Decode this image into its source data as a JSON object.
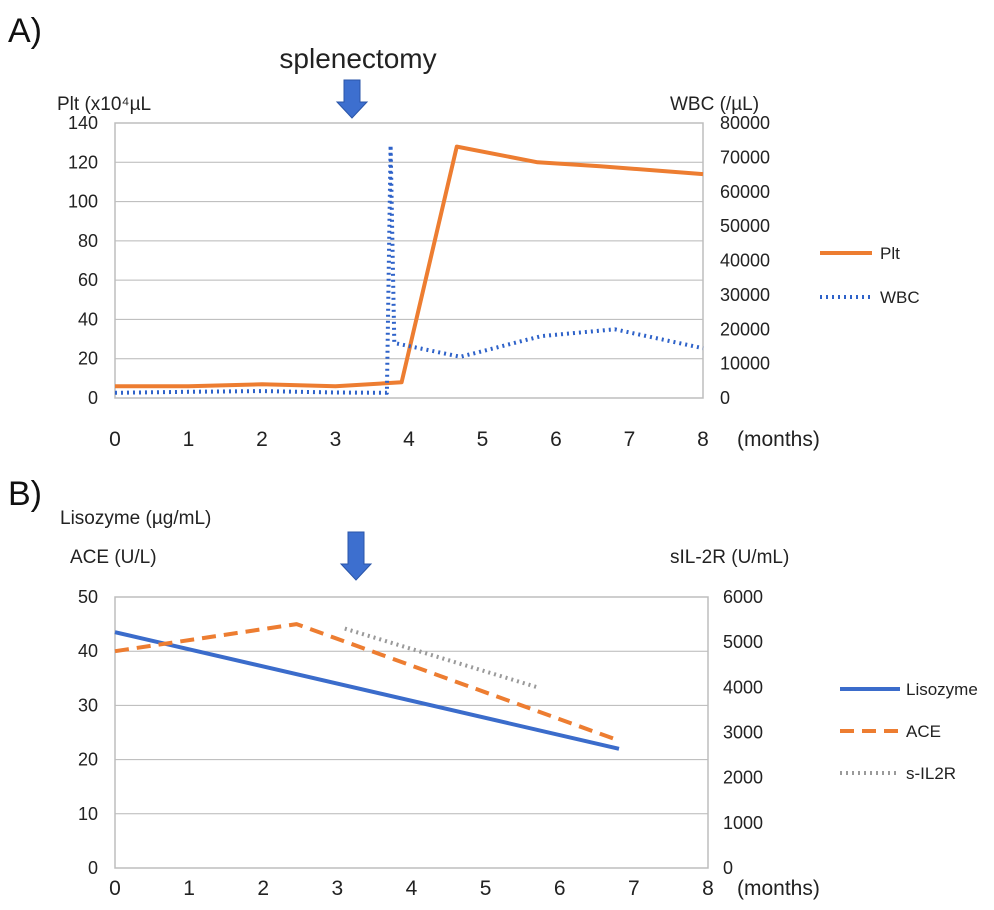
{
  "chart_data": [
    {
      "panel": "A)",
      "type": "line",
      "title": "splenectomy",
      "ylabel_left": "Plt (x10⁴µL",
      "ylabel_right": "WBC (/µL)",
      "xlabel": "(months)",
      "x_ticks": [
        "0",
        "1",
        "2",
        "3",
        "4",
        "5",
        "6",
        "7",
        "8"
      ],
      "xlim": [
        0,
        8
      ],
      "ylim_left": [
        0,
        140
      ],
      "yticks_left": [
        "0",
        "20",
        "40",
        "60",
        "80",
        "100",
        "120",
        "140"
      ],
      "ylim_right": [
        0,
        80000
      ],
      "yticks_right": [
        "0",
        "10000",
        "20000",
        "30000",
        "40000",
        "50000",
        "60000",
        "70000",
        "80000"
      ],
      "grid": true,
      "legend_position": "right",
      "event_marker": {
        "x": 3.6
      },
      "series": [
        {
          "name": "Plt",
          "axis": "left",
          "color": "#ED7D31",
          "style": "solid",
          "x": [
            0,
            1,
            2,
            3,
            3.9,
            4.65,
            5.75,
            6.6,
            8
          ],
          "y": [
            6,
            6,
            7,
            6,
            8,
            128,
            120,
            118,
            114
          ]
        },
        {
          "name": "WBC",
          "axis": "right",
          "color": "#2E62C9",
          "style": "dotted",
          "x": [
            0,
            1,
            2,
            3,
            3.7,
            3.75,
            3.8,
            4.7,
            5.8,
            6.8,
            8
          ],
          "y": [
            1500,
            1800,
            2000,
            1600,
            1500,
            73500,
            16000,
            12000,
            18000,
            20000,
            14500
          ]
        }
      ]
    },
    {
      "panel": "B)",
      "type": "line",
      "title": "",
      "ylabel_left_line1": "Lisozyme (µg/mL)",
      "ylabel_left_line2": "ACE (U/L)",
      "ylabel_right": "sIL-2R (U/mL)",
      "xlabel": "(months)",
      "x_ticks": [
        "0",
        "1",
        "2",
        "3",
        "4",
        "5",
        "6",
        "7",
        "8"
      ],
      "xlim": [
        0,
        8
      ],
      "ylim_left": [
        0,
        50
      ],
      "yticks_left": [
        "0",
        "10",
        "20",
        "30",
        "40",
        "50"
      ],
      "ylim_right": [
        0,
        6000
      ],
      "yticks_right": [
        "0",
        "1000",
        "2000",
        "3000",
        "4000",
        "5000",
        "6000"
      ],
      "grid": true,
      "legend_position": "right",
      "event_marker": {
        "x": 3.6
      },
      "series": [
        {
          "name": "Lisozyme",
          "axis": "left",
          "color": "#3B6CCB",
          "style": "solid",
          "x": [
            0,
            6.8
          ],
          "y": [
            43.5,
            22
          ]
        },
        {
          "name": "ACE",
          "axis": "left",
          "color": "#ED7D31",
          "style": "dashed",
          "x": [
            0,
            2.45,
            6.8
          ],
          "y": [
            40,
            45,
            23.5
          ]
        },
        {
          "name": "s-IL2R",
          "axis": "right",
          "color": "#9A9A9A",
          "style": "dotted",
          "x": [
            3.1,
            5.7
          ],
          "y": [
            5300,
            4000
          ]
        }
      ]
    }
  ]
}
